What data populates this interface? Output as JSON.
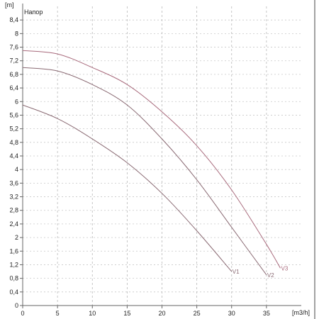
{
  "chart_data": {
    "type": "line",
    "title": "Напор",
    "xlabel": "[m3/h]",
    "ylabel": "[m]",
    "xlim": [
      0,
      40
    ],
    "ylim": [
      0,
      8.8
    ],
    "x_ticks": [
      0,
      5,
      10,
      15,
      20,
      25,
      30,
      35
    ],
    "y_ticks": [
      0,
      0.4,
      0.8,
      1.2,
      1.6,
      2,
      2.4,
      2.8,
      3.2,
      3.6,
      4,
      4.4,
      4.8,
      5.2,
      5.6,
      6,
      6.4,
      6.8,
      7.2,
      7.6,
      8,
      8.4
    ],
    "y_tick_labels": [
      "0",
      "0,4",
      "0,8",
      "1,2",
      "1,6",
      "2",
      "2,4",
      "2,8",
      "3,2",
      "3,6",
      "4",
      "4,4",
      "4,8",
      "5,2",
      "5,6",
      "6",
      "6,4",
      "6,8",
      "7,2",
      "7,6",
      "8",
      "8,4"
    ],
    "grid": true,
    "colors": {
      "axis": "#666666",
      "grid": "#b8b8b8",
      "series": "#8a6a73",
      "series_v3": "#a86a7c"
    },
    "series": [
      {
        "name": "V1",
        "x": [
          0,
          5,
          10,
          15,
          20,
          25,
          30
        ],
        "y": [
          5.9,
          5.5,
          4.9,
          4.2,
          3.3,
          2.2,
          1.0
        ]
      },
      {
        "name": "V2",
        "x": [
          0,
          5,
          10,
          15,
          20,
          25,
          30,
          35
        ],
        "y": [
          7.0,
          6.9,
          6.5,
          5.9,
          4.9,
          3.7,
          2.3,
          0.9
        ]
      },
      {
        "name": "V3",
        "x": [
          0,
          5,
          10,
          15,
          20,
          25,
          30,
          35,
          37
        ],
        "y": [
          7.5,
          7.4,
          7.0,
          6.5,
          5.7,
          4.7,
          3.4,
          1.8,
          1.1
        ]
      }
    ]
  }
}
